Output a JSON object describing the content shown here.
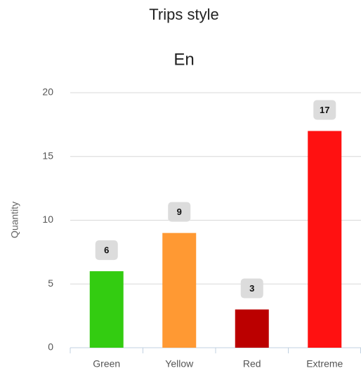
{
  "chart_data": {
    "type": "bar",
    "title": "Trips style",
    "subtitle": "En",
    "y_label": "Quantity",
    "categories": [
      "Green",
      "Yellow",
      "Red",
      "Extreme"
    ],
    "values": [
      6,
      9,
      3,
      17
    ],
    "colors": [
      "#33cc11",
      "#ff9933",
      "#bb0000",
      "#ff1111"
    ],
    "ylim": [
      0,
      20
    ],
    "yticks": [
      0,
      5,
      10,
      15,
      20
    ],
    "grid": true
  }
}
